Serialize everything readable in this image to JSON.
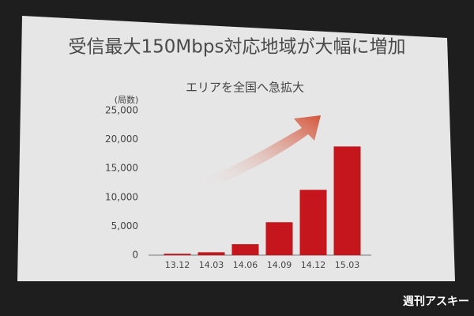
{
  "chart_data": {
    "type": "bar",
    "title": "受信最大150Mbps対応地域が大幅に増加",
    "subtitle": "エリアを全国へ急拡大",
    "y_label": "(局数)",
    "categories": [
      "13.12",
      "14.03",
      "14.06",
      "14.09",
      "14.12",
      "15.03"
    ],
    "values": [
      250,
      500,
      1900,
      5700,
      11300,
      18800
    ],
    "color": "#c4161c",
    "ylim": [
      0,
      25000
    ],
    "yticks": [
      0,
      {
        "value": 5000,
        "label": "5,000"
      },
      {
        "value": 10000,
        "label": "10,000"
      },
      {
        "value": 15000,
        "label": "15,000"
      },
      {
        "value": 20000,
        "label": "20,000"
      },
      {
        "value": 25000,
        "label": "25,000"
      }
    ],
    "grid": false,
    "annotations": [
      "週刊アスキー"
    ]
  }
}
